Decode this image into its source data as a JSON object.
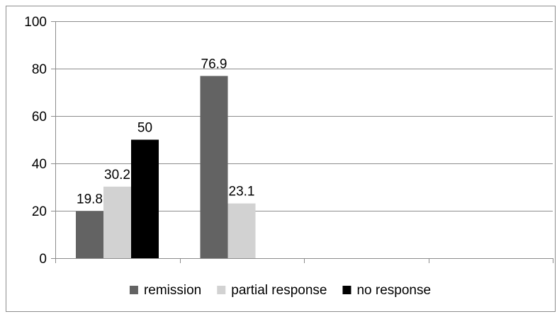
{
  "chart_data": {
    "type": "bar",
    "categories": [
      "",
      "",
      "",
      ""
    ],
    "series": [
      {
        "name": "remission",
        "values": [
          19.8,
          76.9,
          null,
          null
        ],
        "color": "#636363"
      },
      {
        "name": "partial response",
        "values": [
          30.2,
          23.1,
          null,
          null
        ],
        "color": "#d2d2d2"
      },
      {
        "name": "no response",
        "values": [
          50,
          null,
          null,
          null
        ],
        "color": "#000000"
      }
    ],
    "data_labels": [
      [
        "19.8",
        "76.9",
        null,
        null
      ],
      [
        "30.2",
        "23.1",
        null,
        null
      ],
      [
        "50",
        null,
        null,
        null
      ]
    ],
    "ylim": [
      0,
      100
    ],
    "y_ticks": [
      0,
      20,
      40,
      60,
      80,
      100
    ],
    "y_tick_labels": [
      "0",
      "20",
      "40",
      "60",
      "80",
      "100"
    ],
    "grid": true,
    "legend_position": "bottom",
    "title": "",
    "xlabel": "",
    "ylabel": ""
  }
}
